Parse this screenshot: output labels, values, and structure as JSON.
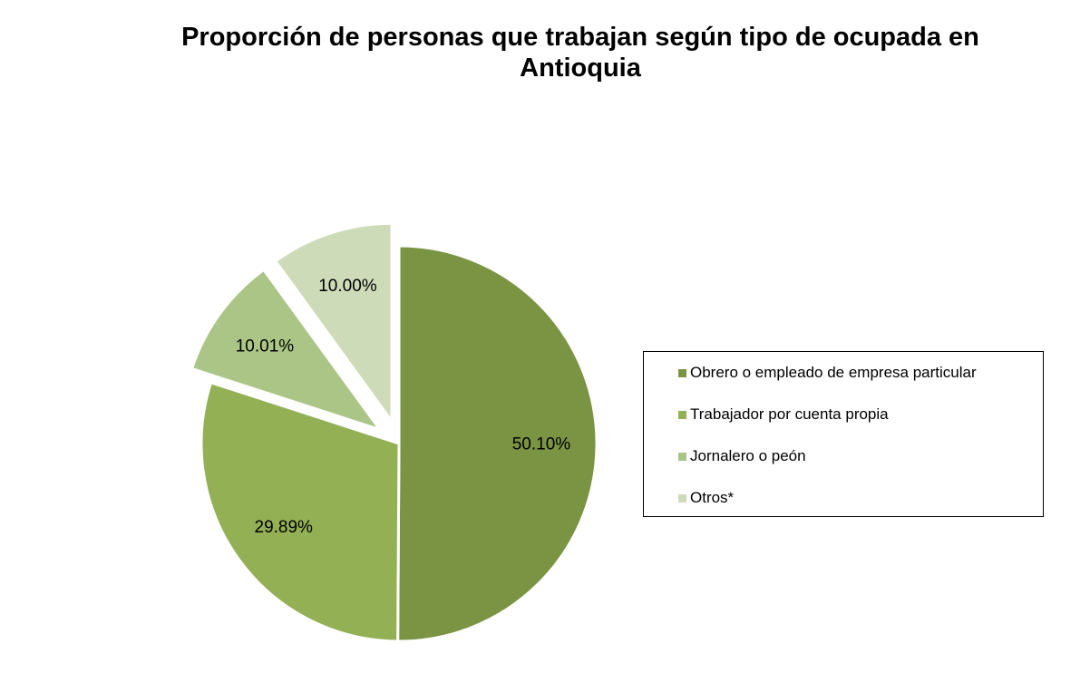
{
  "chart_data": {
    "type": "pie",
    "title_lines": [
      "Proporción de personas que trabajan según tipo de ocupada en",
      "Antioquia"
    ],
    "slices": [
      {
        "label": "Obrero o empleado de empresa particular",
        "value": 50.1,
        "display": "50.10%",
        "color": "#7a9444",
        "exploded": false
      },
      {
        "label": "Trabajador por cuenta propia",
        "value": 29.89,
        "display": "29.89%",
        "color": "#93b055",
        "exploded": false
      },
      {
        "label": "Jornalero o peón",
        "value": 10.01,
        "display": "10.01%",
        "color": "#abc586",
        "exploded": true
      },
      {
        "label": "Otros*",
        "value": 10.0,
        "display": "10.00%",
        "color": "#cddbb8",
        "exploded": true
      }
    ],
    "start_angle_deg": 0,
    "direction": "clockwise",
    "legend_position": "right"
  }
}
